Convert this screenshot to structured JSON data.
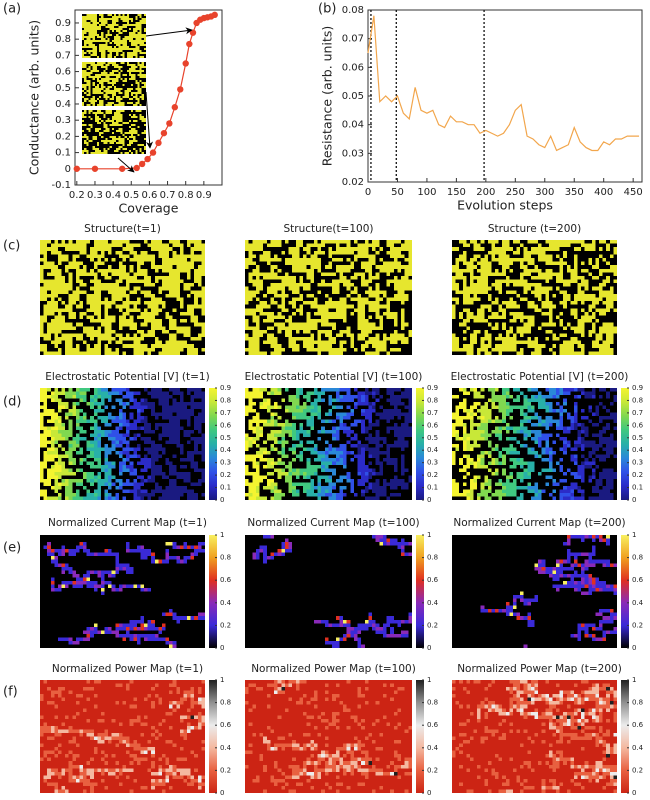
{
  "panel_labels": [
    "(a)",
    "(b)",
    "(c)",
    "(d)",
    "(e)",
    "(f)"
  ],
  "chart_data": [
    {
      "type": "line",
      "xlabel": "Coverage",
      "ylabel": "Conductance (arb. units)",
      "x": [
        0.2,
        0.3,
        0.45,
        0.53,
        0.56,
        0.59,
        0.62,
        0.65,
        0.68,
        0.71,
        0.74,
        0.77,
        0.8,
        0.82,
        0.84,
        0.86,
        0.88,
        0.9,
        0.92,
        0.94,
        0.96
      ],
      "series": [
        {
          "color": "#e8432c",
          "values": [
            0,
            0,
            0,
            0.005,
            0.03,
            0.06,
            0.1,
            0.16,
            0.22,
            0.28,
            0.38,
            0.49,
            0.65,
            0.77,
            0.84,
            0.9,
            0.92,
            0.93,
            0.935,
            0.94,
            0.95
          ]
        }
      ],
      "markers": true,
      "xlim": [
        0.19,
        1.0
      ],
      "ylim": [
        -0.1,
        0.98
      ],
      "xticks": [
        0.2,
        0.3,
        0.4,
        0.5,
        0.6,
        0.7,
        0.8,
        0.9
      ],
      "yticks": [
        -0.1,
        0,
        0.1,
        0.2,
        0.3,
        0.4,
        0.5,
        0.6,
        0.7,
        0.8,
        0.9
      ]
    },
    {
      "type": "line",
      "xlabel": "Evolution steps",
      "ylabel": "Resistance (arb. units)",
      "x": [
        0,
        10,
        20,
        30,
        40,
        50,
        60,
        70,
        80,
        90,
        100,
        110,
        120,
        130,
        140,
        150,
        160,
        170,
        180,
        190,
        200,
        210,
        220,
        230,
        240,
        250,
        260,
        270,
        280,
        290,
        300,
        310,
        320,
        330,
        340,
        350,
        360,
        370,
        380,
        390,
        400,
        410,
        420,
        430,
        440,
        450,
        460
      ],
      "series": [
        {
          "color": "#f2a64c",
          "values": [
            0.065,
            0.078,
            0.048,
            0.05,
            0.048,
            0.05,
            0.044,
            0.042,
            0.053,
            0.045,
            0.044,
            0.045,
            0.04,
            0.039,
            0.043,
            0.041,
            0.041,
            0.04,
            0.04,
            0.037,
            0.038,
            0.037,
            0.036,
            0.037,
            0.04,
            0.045,
            0.047,
            0.036,
            0.035,
            0.033,
            0.032,
            0.036,
            0.031,
            0.032,
            0.033,
            0.039,
            0.034,
            0.032,
            0.031,
            0.031,
            0.034,
            0.033,
            0.035,
            0.035,
            0.036,
            0.036,
            0.036
          ]
        }
      ],
      "markers": false,
      "vlines": [
        5,
        48,
        197
      ],
      "xlim": [
        0,
        465
      ],
      "ylim": [
        0.02,
        0.08
      ],
      "xticks": [
        0,
        50,
        100,
        150,
        200,
        250,
        300,
        350,
        400,
        450
      ],
      "yticks": [
        0.02,
        0.03,
        0.04,
        0.05,
        0.06,
        0.07,
        0.08
      ]
    }
  ],
  "maps": {
    "rows": [
      {
        "titles": [
          "Structure(t=1)",
          "Structure(t=100)",
          "Structure (t=200)"
        ],
        "colors": [
          "#e6e62e",
          "#000000"
        ]
      },
      {
        "titles": [
          "Electrostatic Potential [V] (t=1)",
          "Electrostatic Potential [V] (t=100)",
          "Electrostatic Potential [V] (t=200)"
        ],
        "colors": [
          "#1a1a80",
          "#2b2bc8",
          "#3050e8",
          "#2a88d8",
          "#28b0a8",
          "#40c880",
          "#80d850",
          "#c8e838",
          "#f4f430"
        ],
        "clim": [
          0,
          0.9
        ],
        "ticks": [
          0,
          0.1,
          0.2,
          0.3,
          0.4,
          0.5,
          0.6,
          0.7,
          0.8,
          0.9
        ]
      },
      {
        "titles": [
          "Normalized Current Map (t=1)",
          "Normalized Current Map (t=100)",
          "Normalized Current Map (t=200)"
        ],
        "colors": [
          "#000000",
          "#3a2ad8",
          "#8a2ab8",
          "#e03020",
          "#f0a020",
          "#f8f060"
        ],
        "clim": [
          0,
          1
        ],
        "ticks": [
          0,
          0.2,
          0.4,
          0.6,
          0.8,
          1
        ]
      },
      {
        "titles": [
          "Normalized Power Map (t=1)",
          "Normalized Power Map (t=100)",
          "Normalized Power Map (t=200)"
        ],
        "colors": [
          "#cc2414",
          "#e86040",
          "#f4b8a0",
          "#ececec",
          "#909090",
          "#202020"
        ],
        "clim": [
          0,
          1
        ],
        "ticks": [
          0,
          0.2,
          0.4,
          0.6,
          0.8,
          1
        ]
      }
    ]
  }
}
